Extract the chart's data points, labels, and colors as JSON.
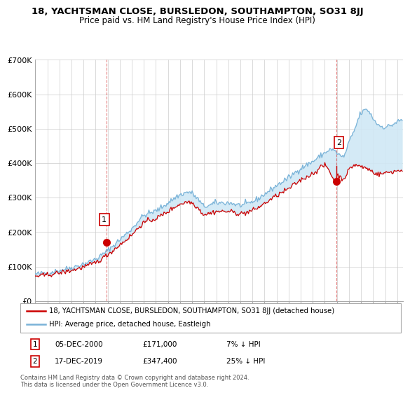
{
  "title": "18, YACHTSMAN CLOSE, BURSLEDON, SOUTHAMPTON, SO31 8JJ",
  "subtitle": "Price paid vs. HM Land Registry's House Price Index (HPI)",
  "ylim": [
    0,
    700000
  ],
  "yticks": [
    0,
    100000,
    200000,
    300000,
    400000,
    500000,
    600000,
    700000
  ],
  "ytick_labels": [
    "£0",
    "£100K",
    "£200K",
    "£300K",
    "£400K",
    "£500K",
    "£600K",
    "£700K"
  ],
  "legend_line1": "18, YACHTSMAN CLOSE, BURSLEDON, SOUTHAMPTON, SO31 8JJ (detached house)",
  "legend_line2": "HPI: Average price, detached house, Eastleigh",
  "annotation1_date": "05-DEC-2000",
  "annotation1_price": "£171,000",
  "annotation1_hpi": "7% ↓ HPI",
  "annotation2_date": "17-DEC-2019",
  "annotation2_price": "£347,400",
  "annotation2_hpi": "25% ↓ HPI",
  "footer": "Contains HM Land Registry data © Crown copyright and database right 2024.\nThis data is licensed under the Open Government Licence v3.0.",
  "hpi_color": "#7ab3d8",
  "fill_color": "#d0e8f5",
  "price_color": "#cc0000",
  "marker_color": "#cc0000",
  "sale1_x": 2000.92,
  "sale1_y": 171000,
  "sale2_x": 2019.96,
  "sale2_y": 347400,
  "xmin": 1995.0,
  "xmax": 2025.5
}
